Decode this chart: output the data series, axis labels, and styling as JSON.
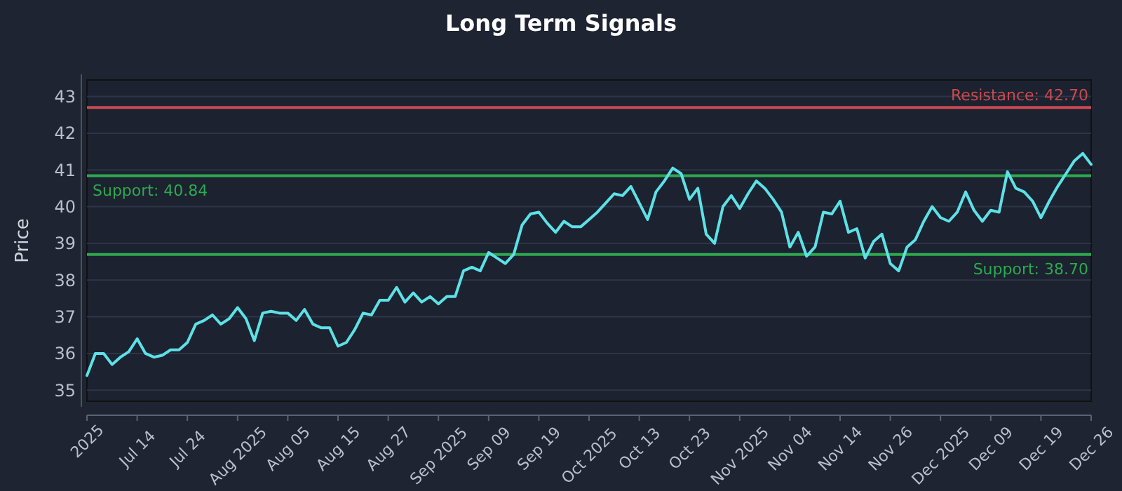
{
  "chart_data": {
    "type": "line",
    "title": "Long Term Signals",
    "ylabel": "Price",
    "categories": [
      "2025",
      null,
      null,
      null,
      null,
      null,
      "Jul 14",
      null,
      null,
      null,
      null,
      null,
      "Jul 24",
      null,
      null,
      null,
      null,
      null,
      "Aug 2025",
      null,
      null,
      null,
      null,
      null,
      "Aug 05",
      null,
      null,
      null,
      null,
      null,
      "Aug 15",
      null,
      null,
      null,
      null,
      null,
      "Aug 27",
      null,
      null,
      null,
      null,
      null,
      "Sep 2025",
      null,
      null,
      null,
      null,
      null,
      "Sep 09",
      null,
      null,
      null,
      null,
      null,
      "Sep 19",
      null,
      null,
      null,
      null,
      null,
      "Oct 2025",
      null,
      null,
      null,
      null,
      null,
      "Oct 13",
      null,
      null,
      null,
      null,
      null,
      "Oct 23",
      null,
      null,
      null,
      null,
      null,
      "Nov 2025",
      null,
      null,
      null,
      null,
      null,
      "Nov 04",
      null,
      null,
      null,
      null,
      null,
      "Nov 14",
      null,
      null,
      null,
      null,
      null,
      "Nov 26",
      null,
      null,
      null,
      null,
      null,
      "Dec 2025",
      null,
      null,
      null,
      null,
      null,
      "Dec 09",
      null,
      null,
      null,
      null,
      null,
      "Dec 19",
      null,
      null,
      null,
      null,
      null,
      "Dec 26"
    ],
    "series": [
      {
        "color": "#5ce1e6",
        "values": [
          35.4,
          36.0,
          36.0,
          35.7,
          35.9,
          36.05,
          36.4,
          36.0,
          35.9,
          35.95,
          36.1,
          36.1,
          36.3,
          36.8,
          36.9,
          37.05,
          36.8,
          36.95,
          37.25,
          36.95,
          36.35,
          37.1,
          37.15,
          37.1,
          37.1,
          36.9,
          37.2,
          36.8,
          36.7,
          36.7,
          36.2,
          36.3,
          36.65,
          37.1,
          37.05,
          37.45,
          37.45,
          37.8,
          37.4,
          37.65,
          37.4,
          37.55,
          37.35,
          37.55,
          37.55,
          38.25,
          38.35,
          38.25,
          38.75,
          38.6,
          38.45,
          38.7,
          39.5,
          39.8,
          39.85,
          39.55,
          39.3,
          39.6,
          39.45,
          39.45,
          39.65,
          39.85,
          40.1,
          40.35,
          40.3,
          40.55,
          40.1,
          39.65,
          40.4,
          40.7,
          41.05,
          40.9,
          40.2,
          40.5,
          39.25,
          39.0,
          40.0,
          40.3,
          39.95,
          40.35,
          40.7,
          40.5,
          40.2,
          39.85,
          38.9,
          39.3,
          38.65,
          38.9,
          39.85,
          39.8,
          40.15,
          39.3,
          39.4,
          38.6,
          39.05,
          39.25,
          38.45,
          38.25,
          38.9,
          39.1,
          39.6,
          40.0,
          39.7,
          39.6,
          39.85,
          40.4,
          39.9,
          39.6,
          39.9,
          39.85,
          40.95,
          40.5,
          40.4,
          40.15,
          39.7,
          40.15,
          40.55,
          40.9,
          41.25,
          41.45,
          41.15
        ]
      }
    ],
    "ylim": [
      34.7,
      43.45
    ],
    "yticks": [
      35,
      36,
      37,
      38,
      39,
      40,
      41,
      42,
      43
    ],
    "grid": "y",
    "marker": "none",
    "line_style": "solid",
    "ref_lines": [
      {
        "axis": "y",
        "value": 42.7,
        "label": "Resistance: 42.70",
        "color": "#c94a4f"
      },
      {
        "axis": "y",
        "value": 40.84,
        "label": "Support: 40.84",
        "color": "#2ea84f"
      },
      {
        "axis": "y",
        "value": 38.7,
        "label": "Support: 38.70",
        "color": "#2ea84f"
      }
    ]
  }
}
